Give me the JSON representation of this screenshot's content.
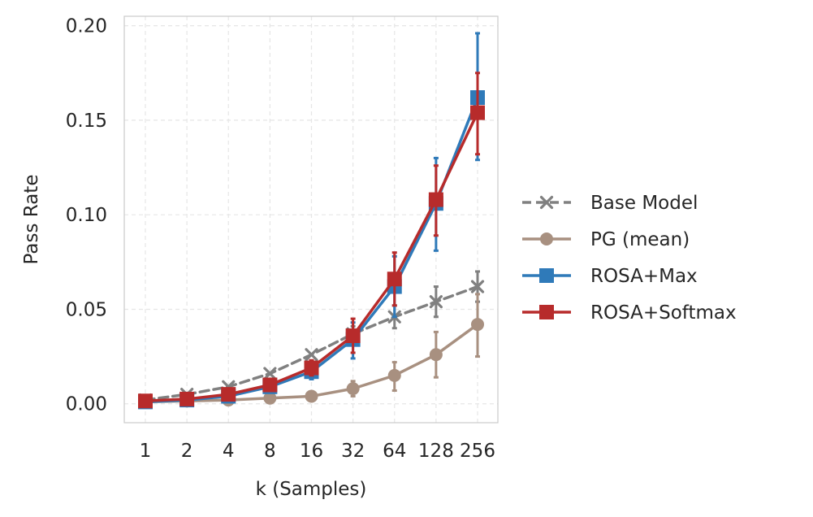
{
  "chart_data": {
    "type": "line",
    "xlabel": "k (Samples)",
    "ylabel": "Pass Rate",
    "x": [
      1,
      2,
      4,
      8,
      16,
      32,
      64,
      128,
      256
    ],
    "x_scale": "log2",
    "ylim": [
      -0.01,
      0.205
    ],
    "yticks": [
      "0.00",
      "0.05",
      "0.10",
      "0.15",
      "0.20"
    ],
    "grid": true,
    "legend_position": "right",
    "series": [
      {
        "name": "Base Model",
        "color": "#808080",
        "marker": "x",
        "linestyle": "dashed",
        "values": [
          0.002,
          0.005,
          0.009,
          0.016,
          0.026,
          0.037,
          0.046,
          0.054,
          0.062
        ],
        "err_low": [
          0.002,
          0.005,
          0.009,
          0.016,
          0.026,
          0.033,
          0.04,
          0.046,
          0.054
        ],
        "err_high": [
          0.002,
          0.005,
          0.009,
          0.016,
          0.026,
          0.041,
          0.052,
          0.062,
          0.07
        ]
      },
      {
        "name": "PG (mean)",
        "color": "#a89080",
        "marker": "circle",
        "linestyle": "solid",
        "values": [
          0.001,
          0.0015,
          0.002,
          0.003,
          0.004,
          0.008,
          0.015,
          0.026,
          0.042
        ],
        "err_low": [
          0.001,
          0.0015,
          0.002,
          0.003,
          0.004,
          0.004,
          0.007,
          0.014,
          0.025
        ],
        "err_high": [
          0.001,
          0.0015,
          0.002,
          0.003,
          0.004,
          0.012,
          0.022,
          0.038,
          0.058
        ]
      },
      {
        "name": "ROSA+Max",
        "color": "#2f7ab9",
        "marker": "square",
        "linestyle": "solid",
        "values": [
          0.001,
          0.002,
          0.004,
          0.009,
          0.017,
          0.034,
          0.062,
          0.106,
          0.162
        ],
        "err_low": [
          0.001,
          0.002,
          0.004,
          0.008,
          0.013,
          0.024,
          0.046,
          0.081,
          0.129
        ],
        "err_high": [
          0.001,
          0.002,
          0.004,
          0.01,
          0.021,
          0.043,
          0.078,
          0.13,
          0.196
        ]
      },
      {
        "name": "ROSA+Softmax",
        "color": "#b72b2b",
        "marker": "square",
        "linestyle": "solid",
        "values": [
          0.0015,
          0.0025,
          0.005,
          0.01,
          0.019,
          0.036,
          0.066,
          0.108,
          0.154
        ],
        "err_low": [
          0.0015,
          0.0025,
          0.005,
          0.009,
          0.015,
          0.027,
          0.052,
          0.089,
          0.132
        ],
        "err_high": [
          0.0015,
          0.0025,
          0.005,
          0.011,
          0.023,
          0.045,
          0.08,
          0.126,
          0.175
        ]
      }
    ]
  }
}
